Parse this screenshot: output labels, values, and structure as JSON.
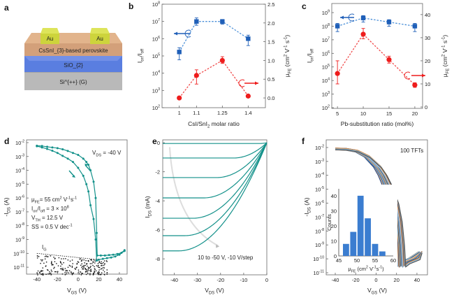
{
  "panel_labels": {
    "a": "a",
    "b": "b",
    "c": "c",
    "d": "d",
    "e": "e",
    "f": "f"
  },
  "panel_a": {
    "au_left": "Au",
    "au_right": "Au",
    "perovskite": "CsSnI_{3}-based perovskite",
    "sio2": "SiO_{2}",
    "si": "Si^{++} (G)",
    "colors": {
      "au": "#cdd43c",
      "perovskite": "#d9a57a",
      "sio2": "#5a7ee0",
      "si": "#b9b9b9"
    }
  },
  "chart_data": [
    {
      "type": "scatter",
      "panel": "b",
      "xlabel": "CsI/SnI_{2} molar ratio",
      "ylabel_left": "I_{on}/I_{off}",
      "ylabel_right": "μ_{FE} (cm^{2} V^{-1} s^{-1})",
      "xlim": [
        0.9,
        1.5
      ],
      "xticks": [
        1,
        1.1,
        1.25,
        1.4
      ],
      "xtick_labels": [
        "1",
        "1.1",
        "1.25",
        "1.4"
      ],
      "ylim_left_log10": [
        2,
        8
      ],
      "ylim_right": [
        -0.26,
        2.5
      ],
      "yticks_right": [
        0.0,
        0.5,
        1.0,
        1.5,
        2.0,
        2.5
      ],
      "ytick_labels_right": [
        "0.0",
        "0.5",
        "1.0",
        "1.5",
        "2.0",
        "2.5"
      ],
      "series": [
        {
          "axis": "left",
          "marker": "square",
          "color": "#1f5fb8",
          "line": "#4a8fd8",
          "x": [
            1,
            1.1,
            1.25,
            1.4
          ],
          "y": [
            170000,
            10000000,
            10000000,
            1000000
          ],
          "err": [
            [
              60000,
              300000
            ],
            [
              6000000,
              16000000
            ],
            [
              7000000,
              13000000
            ],
            [
              400000,
              1600000
            ]
          ]
        },
        {
          "axis": "right",
          "marker": "circle",
          "color": "#ee1c1c",
          "line": "#f04a4a",
          "x": [
            1,
            1.1,
            1.25,
            1.4
          ],
          "y": [
            0.0,
            0.6,
            1.0,
            0.05
          ],
          "err": [
            null,
            [
              0.37,
              0.75
            ],
            [
              0.92,
              1.1
            ],
            null
          ]
        }
      ]
    },
    {
      "type": "scatter",
      "panel": "c",
      "xlabel": "Pb-substitution ratio (mol%)",
      "ylabel_left": "I_{on}/I_{off}",
      "ylabel_right": "μ_{FE} (cm^{2} V^{-1} s^{-1})",
      "xlim": [
        3.9,
        21.5
      ],
      "xticks": [
        5,
        10,
        15,
        20
      ],
      "xtick_labels": [
        "5",
        "10",
        "15",
        "20"
      ],
      "ylim_left_log10": [
        1.95,
        9.67
      ],
      "ylim_right": [
        -0.6,
        44.8
      ],
      "yticks_right": [
        0,
        10,
        20,
        30,
        40
      ],
      "ytick_labels_right": [
        "0",
        "10",
        "20",
        "30",
        "40"
      ],
      "series": [
        {
          "axis": "left",
          "marker": "square",
          "color": "#1f5fb8",
          "line": "#4a8fd8",
          "x": [
            5,
            10,
            15,
            20
          ],
          "y": [
            100000000,
            400000000,
            200000000,
            100000000
          ],
          "err": [
            [
              40000000,
              160000000
            ],
            [
              200000000,
              600000000
            ],
            [
              100000000,
              300000000
            ],
            [
              40000000,
              160000000
            ]
          ]
        },
        {
          "axis": "right",
          "marker": "circle",
          "color": "#ee1c1c",
          "line": "#f04a4a",
          "x": [
            5,
            10,
            15,
            20
          ],
          "y": [
            14.5,
            31.5,
            20.5,
            9.5
          ],
          "err": [
            [
              10,
              20
            ],
            [
              29.5,
              34
            ],
            [
              19,
              22
            ],
            [
              8.5,
              10.5
            ]
          ]
        }
      ]
    },
    {
      "type": "line",
      "panel": "d",
      "xlabel": "V_{GS} (V)",
      "ylabel": "-I_{DS} (A)",
      "xlim": [
        -50,
        47.5
      ],
      "xticks": [
        -40,
        -20,
        0,
        20,
        40
      ],
      "ylim_log10": [
        -11.5,
        -1.8
      ],
      "color": "#13918a",
      "annotations": {
        "vds": "V_{DS} = -40 V",
        "mobility": "μ_{FE}= 55 cm^{2} V^{-1}s^{-1}",
        "onoff": "I_{on}/I_{off} = 3 × 10^{8}",
        "vth": "V_{TH} = 12.5 V",
        "ss": "SS = 0.5 V dec^{-1}",
        "gate_leak": "I_{G}"
      },
      "series": [
        {
          "x": [
            -40,
            -35,
            -30,
            -25,
            -20,
            -15,
            -10,
            -5,
            0,
            5,
            8,
            10,
            12,
            15,
            17,
            18,
            18.5,
            22,
            26,
            30,
            34,
            38,
            42,
            45
          ],
          "y": [
            0.006,
            0.0057,
            0.005,
            0.0045,
            0.004,
            0.0033,
            0.0025,
            0.0018,
            0.0013,
            0.0007,
            0.0004,
            0.00025,
            0.0001,
            1.5e-05,
            1e-06,
            3e-09,
            7e-11,
            7e-11,
            7e-11,
            7.5e-11,
            8e-11,
            9e-11,
            1.1e-10,
            1.7e-10
          ]
        },
        {
          "x": [
            -40,
            -35,
            -30,
            -25,
            -20,
            -15,
            -10,
            -5,
            0,
            5,
            8,
            10,
            12,
            15,
            17,
            18,
            20,
            24,
            28,
            32,
            36,
            40,
            45
          ],
          "y": [
            0.0055,
            0.0045,
            0.0035,
            0.0026,
            0.0018,
            0.0011,
            0.0007,
            0.0004,
            0.00015,
            4e-05,
            1e-05,
            3e-06,
            3e-07,
            3e-08,
            1e-09,
            3e-11,
            3.5e-11,
            4e-11,
            4.5e-11,
            5e-11,
            6e-11,
            8e-11,
            1.5e-10
          ]
        }
      ],
      "gate_leakage_range": {
        "x": [
          -40,
          28
        ],
        "y": [
          3e-12,
          1e-10
        ]
      }
    },
    {
      "type": "line",
      "panel": "e",
      "xlabel": "V_{DS} (V)",
      "ylabel": "I_{DS} (mA)",
      "xlim": [
        -45,
        0
      ],
      "xticks": [
        -40,
        -30,
        -20,
        -10,
        0
      ],
      "ylim": [
        -9.1,
        0.2
      ],
      "yticks": [
        0,
        -2,
        -4,
        -6,
        -8
      ],
      "color": "#13918a",
      "annotation": "10 to -50 V, -10 V/step",
      "vgs_steps": [
        10,
        0,
        -10,
        -20,
        -30,
        -40,
        -50
      ],
      "saturation_current_mA": [
        -0.05,
        -1.05,
        -2.4,
        -3.8,
        -5.2,
        -6.4,
        -7.45
      ]
    },
    {
      "type": "line",
      "panel": "f",
      "xlabel": "V_{GS} (V)",
      "ylabel": "-I_{DS} (A)",
      "xlim": [
        -48.9,
        50.3
      ],
      "xticks": [
        -40,
        -20,
        0,
        20,
        40
      ],
      "ylim_log10": [
        -11.15,
        -1.45
      ],
      "annotation": "100 TFTs",
      "reference_curve": {
        "x": [
          -40,
          -30,
          -20,
          -10,
          0,
          5,
          10,
          15,
          18,
          20,
          21,
          25,
          35,
          45
        ],
        "y": [
          0.008,
          0.0075,
          0.0055,
          0.0022,
          0.0004,
          0.0001,
          1.5e-05,
          1e-06,
          5e-08,
          1e-09,
          3e-11,
          5e-11,
          1e-10,
          3e-10
        ]
      },
      "threshold_shifts_V": [
        -4,
        -3,
        -2.5,
        -2,
        -1.5,
        -1,
        -0.5,
        0,
        0.5,
        1,
        1.5,
        2,
        2.5,
        3,
        3.5,
        4,
        4.5,
        5,
        5.5,
        6,
        6.5,
        7,
        7.5,
        8
      ],
      "curve_colors": [
        "#1f3b73",
        "#e08a3c",
        "#7fb8e0",
        "#4a4a4a",
        "#c9a07a",
        "#2a6fb5",
        "#9aa7b5",
        "#6c8fb0",
        "#a7c6e6",
        "#f2a65a"
      ],
      "inset": {
        "type": "bar",
        "xlabel": "μ_{FE} (cm^{2} V^{-1}s^{-1})",
        "ylabel": "Counts",
        "xlim": [
          45,
          60
        ],
        "ylim": [
          0,
          44.6
        ],
        "xticks": [
          45,
          50,
          55,
          60
        ],
        "yticks": [
          0,
          10,
          20,
          30,
          40
        ],
        "bin_centers": [
          47,
          49,
          51,
          53,
          55,
          57
        ],
        "bin_width": 2,
        "values": [
          8,
          16,
          40,
          25,
          8,
          3
        ],
        "color": "#3b7dd0"
      }
    }
  ]
}
